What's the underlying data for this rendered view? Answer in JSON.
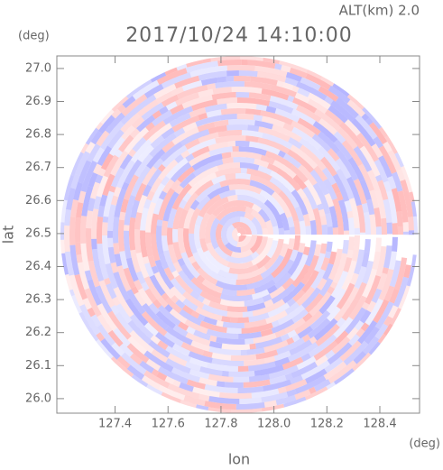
{
  "chart_data": {
    "type": "radar-ppi",
    "title": "2017/10/24 14:10:00",
    "annotation": "ALT(km) 2.0",
    "y_unit": "(deg)",
    "x_unit": "(deg)",
    "x_label": "lon",
    "y_label": "lat",
    "xlim": [
      127.18,
      128.55
    ],
    "ylim": [
      25.956,
      27.038
    ],
    "xticks": [
      127.4,
      127.6,
      127.8,
      {
        "value": 128.0,
        "label": "128.0"
      },
      128.2,
      128.4
    ],
    "yticks": [
      {
        "value": 26.0,
        "label": "26.0"
      },
      26.1,
      26.2,
      26.3,
      26.4,
      26.5,
      26.6,
      26.7,
      26.8,
      26.9,
      {
        "value": 27.0,
        "label": "27.0"
      }
    ]
  }
}
